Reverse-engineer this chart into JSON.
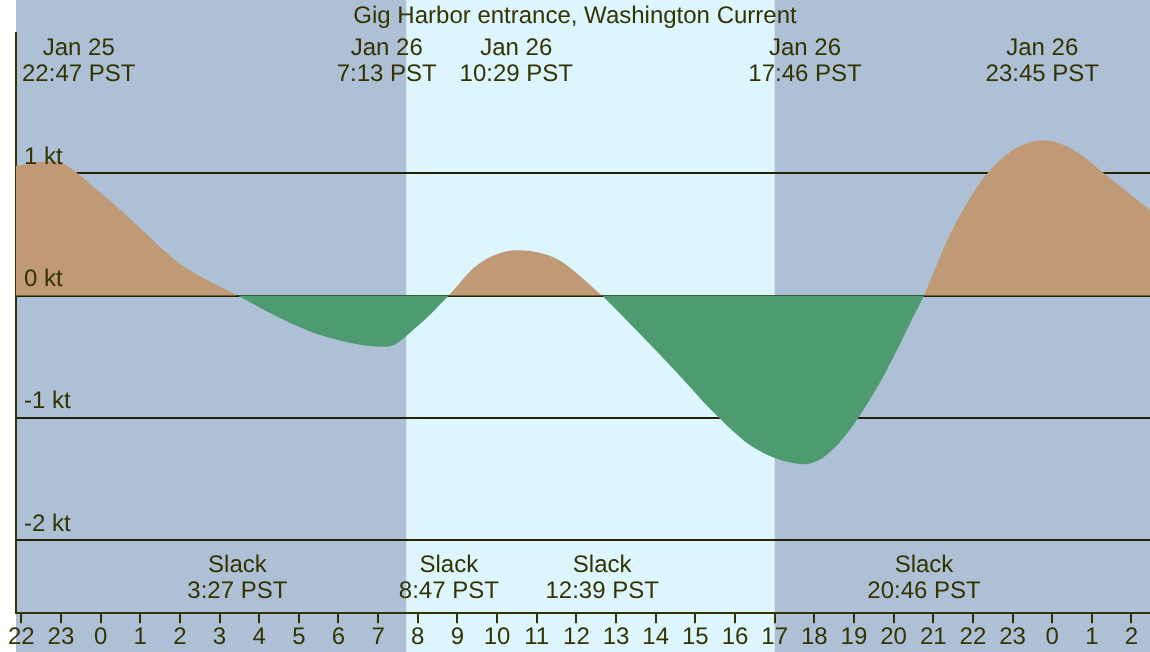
{
  "chart_data": {
    "type": "area",
    "title": "Gig Harbor entrance, Washington Current",
    "x": [
      "--01-25T21:52",
      "--01-25T22:47",
      "--01-26T00:00",
      "--01-26T01:00",
      "--01-26T02:00",
      "--01-26T03:27",
      "--01-26T04:30",
      "--01-26T05:30",
      "--01-26T06:30",
      "--01-26T07:13",
      "--01-26T08:00",
      "--01-26T08:47",
      "--01-26T09:30",
      "--01-26T10:29",
      "--01-26T11:30",
      "--01-26T12:39",
      "--01-26T13:30",
      "--01-26T14:30",
      "--01-26T15:30",
      "--01-26T16:30",
      "--01-26T17:46",
      "--01-26T18:30",
      "--01-26T19:30",
      "--01-26T20:46",
      "--01-26T21:30",
      "--01-26T22:30",
      "--01-26T23:45",
      "--01-27T00:30",
      "--01-27T01:30",
      "--01-27T02:28"
    ],
    "series": [
      {
        "color": "#c09a76",
        "values": [
          1.06,
          1.1,
          0.84,
          0.55,
          0.26,
          0,
          null,
          null,
          null,
          null,
          null,
          0,
          0.25,
          0.37,
          0.3,
          0,
          null,
          null,
          null,
          null,
          null,
          null,
          null,
          0,
          0.55,
          1.05,
          1.27,
          1.2,
          0.95,
          0.7
        ]
      },
      {
        "color": "#4e9a71",
        "values": [
          null,
          null,
          null,
          null,
          null,
          0,
          -0.18,
          -0.32,
          -0.4,
          -0.42,
          -0.25,
          0,
          null,
          null,
          null,
          0,
          -0.28,
          -0.62,
          -0.97,
          -1.25,
          -1.38,
          -1.25,
          -0.8,
          0,
          null,
          null,
          null,
          null,
          null,
          null
        ]
      }
    ],
    "xlim": [
      "--01-25T21:52",
      "--01-27T02:28"
    ],
    "xticks": [
      {
        "value": "--01-25T22:00",
        "label": "22"
      },
      {
        "value": "--01-25T23:00",
        "label": "23"
      },
      {
        "value": "--01-26T00:00",
        "label": "0"
      },
      {
        "value": "--01-26T01:00",
        "label": "1"
      },
      {
        "value": "--01-26T02:00",
        "label": "2"
      },
      {
        "value": "--01-26T03:00",
        "label": "3"
      },
      {
        "value": "--01-26T04:00",
        "label": "4"
      },
      {
        "value": "--01-26T05:00",
        "label": "5"
      },
      {
        "value": "--01-26T06:00",
        "label": "6"
      },
      {
        "value": "--01-26T07:00",
        "label": "7"
      },
      {
        "value": "--01-26T08:00",
        "label": "8"
      },
      {
        "value": "--01-26T09:00",
        "label": "9"
      },
      {
        "value": "--01-26T10:00",
        "label": "10"
      },
      {
        "value": "--01-26T11:00",
        "label": "11"
      },
      {
        "value": "--01-26T12:00",
        "label": "12"
      },
      {
        "value": "--01-26T13:00",
        "label": "13"
      },
      {
        "value": "--01-26T14:00",
        "label": "14"
      },
      {
        "value": "--01-26T15:00",
        "label": "15"
      },
      {
        "value": "--01-26T16:00",
        "label": "16"
      },
      {
        "value": "--01-26T17:00",
        "label": "17"
      },
      {
        "value": "--01-26T18:00",
        "label": "18"
      },
      {
        "value": "--01-26T19:00",
        "label": "19"
      },
      {
        "value": "--01-26T20:00",
        "label": "20"
      },
      {
        "value": "--01-26T21:00",
        "label": "21"
      },
      {
        "value": "--01-26T22:00",
        "label": "22"
      },
      {
        "value": "--01-26T23:00",
        "label": "23"
      },
      {
        "value": "--01-27T00:00",
        "label": "0"
      },
      {
        "value": "--01-27T01:00",
        "label": "1"
      },
      {
        "value": "--01-27T02:00",
        "label": "2"
      }
    ],
    "ylim": [
      -2.6,
      2.15
    ],
    "yticks": [
      {
        "value": -2,
        "label": "-2 kt"
      },
      {
        "value": -1,
        "label": "-1 kt"
      },
      {
        "value": 0,
        "label": "0 kt"
      },
      {
        "value": 1,
        "label": "1 kt"
      }
    ],
    "grid": "y",
    "legend": false,
    "marker": "none",
    "bands": [
      {
        "axis": "x",
        "from": "--01-25T21:52",
        "to": "--01-26T07:43",
        "color": "#aec0d6"
      },
      {
        "axis": "x",
        "from": "--01-26T07:43",
        "to": "--01-26T17:00",
        "color": "#ddf6fd"
      },
      {
        "axis": "x",
        "from": "--01-26T17:00",
        "to": "--01-27T02:28",
        "color": "#aec0d6"
      }
    ],
    "annotations": [
      "Jan 25\n22:47 PST",
      "Jan 26\n7:13 PST",
      "Jan 26\n10:29 PST",
      "Jan 26\n17:46 PST",
      "Jan 26\n23:45 PST",
      "Slack\n3:27 PST",
      "Slack\n8:47 PST",
      "Slack\n12:39 PST",
      "Slack\n20:46 PST"
    ]
  }
}
